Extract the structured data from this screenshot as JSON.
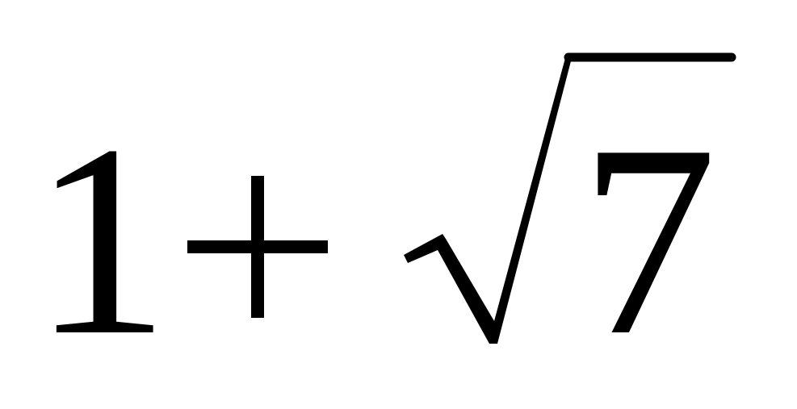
{
  "expression": {
    "first_term": "1",
    "operator": "+",
    "radical_symbol": "√",
    "radicand": "7"
  },
  "colors": {
    "ink": "#000000",
    "background": "#ffffff"
  }
}
